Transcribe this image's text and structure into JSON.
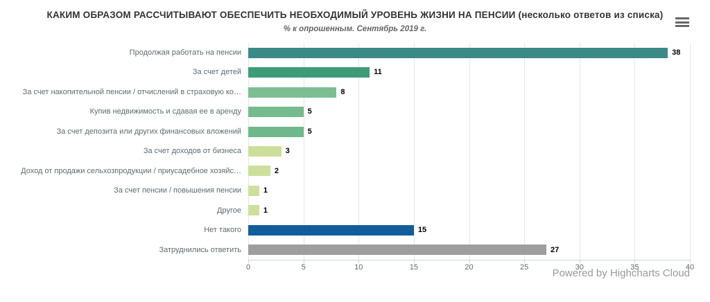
{
  "chart_data": {
    "type": "bar",
    "orientation": "horizontal",
    "title": "КАКИМ ОБРАЗОМ РАССЧИТЫВАЮТ ОБЕСПЕЧИТЬ НЕОБХОДИМЫЙ УРОВЕНЬ ЖИЗНИ НА ПЕНСИИ (несколько ответов из списка)",
    "subtitle": "% к опрошенным. Сентябрь 2019 г.",
    "categories": [
      "Продолжая работать на пенсии",
      "За счет детей",
      "За счет накопительной пенсии / отчислений в страховую ко…",
      "Купив недвижимость и сдавая ее в аренду",
      "За счет депозита или других финансовых вложений",
      "За счет доходов от бизнеса",
      "Доход от продажи сельхозпродукции / приусадебное хозяйс…",
      "За счет пенсии / повышения пенсии",
      "Другое",
      "Нет такого",
      "Затруднились ответить"
    ],
    "values": [
      38,
      11,
      8,
      5,
      5,
      3,
      2,
      1,
      1,
      15,
      27
    ],
    "bar_colors": [
      "#3A8A87",
      "#3E9B78",
      "#7CBE92",
      "#75BB8E",
      "#6FB88B",
      "#CBDF9B",
      "#CCE09C",
      "#CCE09C",
      "#CCE09C",
      "#115D9C",
      "#9E9E9E"
    ],
    "data_labels_visible": true,
    "xlabel": "",
    "ylabel": "",
    "xlim": [
      0,
      40
    ],
    "x_ticks": [
      0,
      5,
      10,
      15,
      20,
      25,
      30,
      35,
      40
    ],
    "grid": true,
    "legend": "none"
  },
  "credits": {
    "label": "Powered by Highcharts Cloud"
  },
  "menu": {
    "icon": "hamburger-icon"
  }
}
